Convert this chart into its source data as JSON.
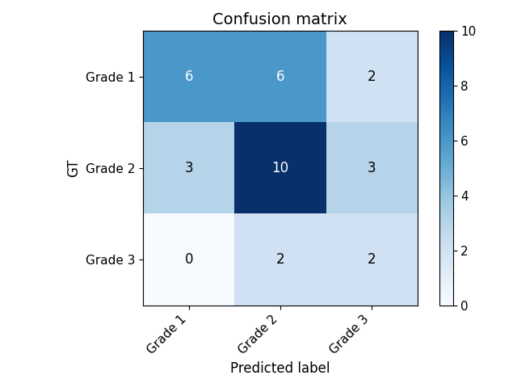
{
  "title": "Confusion matrix",
  "matrix": [
    [
      6,
      6,
      2
    ],
    [
      3,
      10,
      3
    ],
    [
      0,
      2,
      2
    ]
  ],
  "row_labels": [
    "Grade 1",
    "Grade 2",
    "Grade 3"
  ],
  "col_labels": [
    "Grade 1",
    "Grade 2",
    "Grade 3"
  ],
  "xlabel": "Predicted label",
  "ylabel": "GT",
  "cmap": "Blues",
  "vmin": 0,
  "vmax": 10,
  "text_color_threshold": 5,
  "text_color_light": "white",
  "text_color_dark": "black",
  "figsize": [
    6.4,
    4.8
  ],
  "dpi": 100,
  "title_fontsize": 14,
  "label_fontsize": 12,
  "tick_fontsize": 11,
  "cell_fontsize": 12
}
